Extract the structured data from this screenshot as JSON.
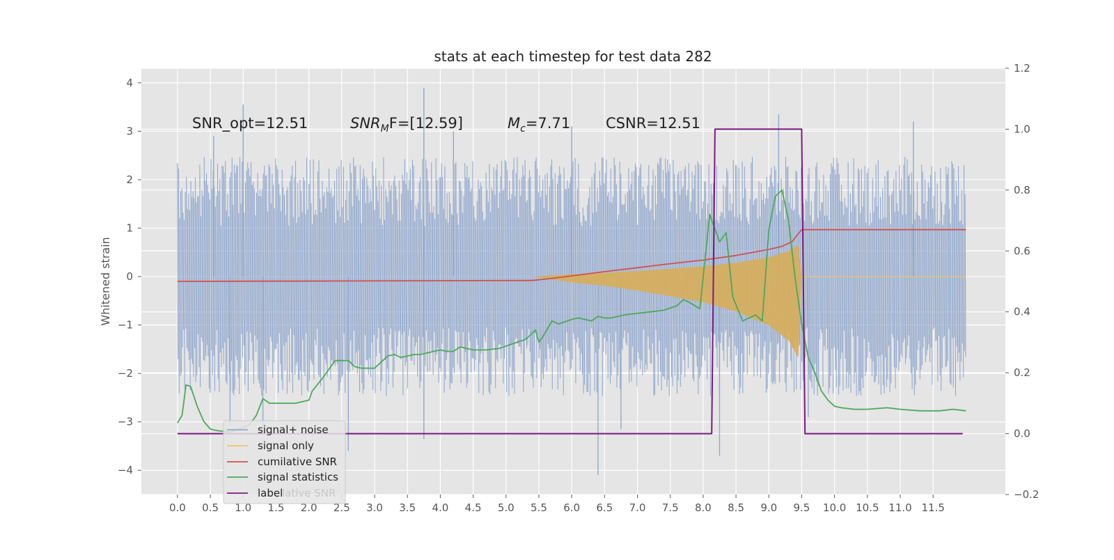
{
  "chart_data": {
    "type": "line",
    "title": "stats at each timestep for test data 282",
    "ylabel": "Whitened strain",
    "y2label": "",
    "xlim": [
      -0.55,
      12.6
    ],
    "ylim": [
      -4.5,
      4.3
    ],
    "y2lim": [
      -0.2,
      1.2
    ],
    "grid": true,
    "legend_placement": "lower-left",
    "x_ticks": [
      "0.0",
      "0.5",
      "1.0",
      "1.5",
      "2.0",
      "2.5",
      "3.0",
      "3.5",
      "4.0",
      "4.5",
      "5.0",
      "5.5",
      "6.0",
      "6.5",
      "7.0",
      "7.5",
      "8.0",
      "8.5",
      "9.0",
      "9.5",
      "10.0",
      "10.5",
      "11.0",
      "11.5"
    ],
    "y_ticks": [
      "4",
      "3",
      "2",
      "1",
      "0",
      "−1",
      "−2",
      "−3",
      "−4"
    ],
    "y2_ticks": [
      "1.2",
      "1.0",
      "0.8",
      "0.6",
      "0.4",
      "0.2",
      "0.0",
      "−0.2"
    ],
    "annotations": {
      "snr_opt": "SNR_opt=12.51",
      "snr_mf_main": "SNR",
      "snr_mf_sub": "M",
      "snr_mf_rest": "F=[12.59]",
      "mc_main": "M",
      "mc_sub": "c",
      "mc_rest": "=7.71",
      "csnr": "CSNR=12.51"
    },
    "legend": [
      {
        "label": "signal+ noise",
        "color": "#92a8cd"
      },
      {
        "label": "signal only",
        "color": "#f2c65a"
      },
      {
        "label": "cumilative SNR",
        "color": "#d05050"
      },
      {
        "label": "signal statistics",
        "color": "#4ca85a"
      },
      {
        "label": "label",
        "color": "#7a1a80"
      }
    ],
    "legend_ghost_text": "lative SNR",
    "series": [
      {
        "name": "signal+ noise",
        "axis": "left",
        "color": "#92a8cd",
        "x_range": [
          0,
          12.0
        ],
        "typical_min": -1.9,
        "typical_max": 1.9,
        "spikes": [
          [
            0.55,
            2.9
          ],
          [
            0.8,
            -3.1
          ],
          [
            1.0,
            3.55
          ],
          [
            1.3,
            -3.2
          ],
          [
            2.6,
            -3.6
          ],
          [
            3.75,
            3.9
          ],
          [
            3.75,
            -3.35
          ],
          [
            4.2,
            3.0
          ],
          [
            6.0,
            3.1
          ],
          [
            6.4,
            -4.1
          ],
          [
            6.75,
            -3.15
          ],
          [
            8.25,
            -3.7
          ],
          [
            9.15,
            3.35
          ],
          [
            9.6,
            -2.9
          ],
          [
            11.2,
            3.2
          ]
        ]
      },
      {
        "name": "signal only",
        "axis": "left",
        "color": "#f2c65a",
        "envelope": [
          [
            5.4,
            0.0
          ],
          [
            6.0,
            0.05
          ],
          [
            6.5,
            0.08
          ],
          [
            7.0,
            0.12
          ],
          [
            7.5,
            0.17
          ],
          [
            8.0,
            0.22
          ],
          [
            8.5,
            0.3
          ],
          [
            9.0,
            0.42
          ],
          [
            9.3,
            0.55
          ],
          [
            9.45,
            0.7
          ],
          [
            9.5,
            0.0
          ]
        ]
      },
      {
        "name": "cumilative SNR",
        "axis": "right",
        "color": "#d05050",
        "x": [
          0,
          5.4,
          5.7,
          6.0,
          6.5,
          7.0,
          7.5,
          8.0,
          8.5,
          9.0,
          9.2,
          9.35,
          9.5,
          12.0
        ],
        "y": [
          0.5,
          0.503,
          0.51,
          0.518,
          0.532,
          0.545,
          0.558,
          0.57,
          0.585,
          0.605,
          0.615,
          0.63,
          0.67,
          0.67
        ]
      },
      {
        "name": "signal statistics",
        "axis": "right",
        "color": "#4ca85a",
        "x": [
          0.0,
          0.07,
          0.13,
          0.2,
          0.3,
          0.4,
          0.5,
          0.6,
          0.8,
          1.0,
          1.1,
          1.2,
          1.3,
          1.4,
          1.6,
          1.7,
          1.8,
          2.0,
          2.05,
          2.2,
          2.4,
          2.6,
          2.7,
          2.8,
          3.0,
          3.1,
          3.2,
          3.3,
          3.4,
          3.5,
          3.6,
          3.7,
          3.8,
          4.0,
          4.1,
          4.2,
          4.3,
          4.4,
          4.5,
          4.7,
          4.9,
          5.1,
          5.3,
          5.45,
          5.5,
          5.55,
          5.7,
          5.8,
          6.0,
          6.1,
          6.3,
          6.4,
          6.5,
          6.6,
          6.8,
          7.0,
          7.2,
          7.4,
          7.6,
          7.7,
          7.8,
          7.95,
          8.1,
          8.25,
          8.35,
          8.45,
          8.6,
          8.7,
          8.8,
          8.9,
          9.0,
          9.1,
          9.2,
          9.3,
          9.4,
          9.5,
          9.6,
          9.7,
          9.8,
          9.9,
          10.0,
          10.1,
          10.3,
          10.5,
          10.8,
          11.0,
          11.3,
          11.6,
          11.8,
          12.0
        ],
        "y": [
          0.035,
          0.06,
          0.16,
          0.155,
          0.09,
          0.04,
          0.015,
          0.01,
          0.005,
          0.02,
          0.03,
          0.06,
          0.115,
          0.1,
          0.1,
          0.1,
          0.1,
          0.11,
          0.14,
          0.18,
          0.24,
          0.24,
          0.22,
          0.215,
          0.215,
          0.235,
          0.255,
          0.26,
          0.25,
          0.255,
          0.26,
          0.26,
          0.265,
          0.275,
          0.27,
          0.27,
          0.285,
          0.28,
          0.275,
          0.275,
          0.28,
          0.295,
          0.31,
          0.34,
          0.3,
          0.315,
          0.37,
          0.36,
          0.375,
          0.38,
          0.37,
          0.385,
          0.38,
          0.38,
          0.39,
          0.395,
          0.4,
          0.405,
          0.42,
          0.44,
          0.43,
          0.41,
          0.72,
          0.63,
          0.66,
          0.45,
          0.37,
          0.38,
          0.39,
          0.37,
          0.67,
          0.78,
          0.8,
          0.7,
          0.51,
          0.36,
          0.25,
          0.2,
          0.14,
          0.11,
          0.09,
          0.085,
          0.08,
          0.08,
          0.085,
          0.08,
          0.075,
          0.075,
          0.08,
          0.075
        ]
      },
      {
        "name": "label",
        "axis": "right",
        "color": "#7a1a80",
        "x": [
          0.0,
          8.13,
          8.18,
          9.5,
          9.55,
          11.95
        ],
        "y": [
          0.0,
          0.0,
          1.0,
          1.0,
          0.0,
          0.0
        ]
      }
    ]
  }
}
